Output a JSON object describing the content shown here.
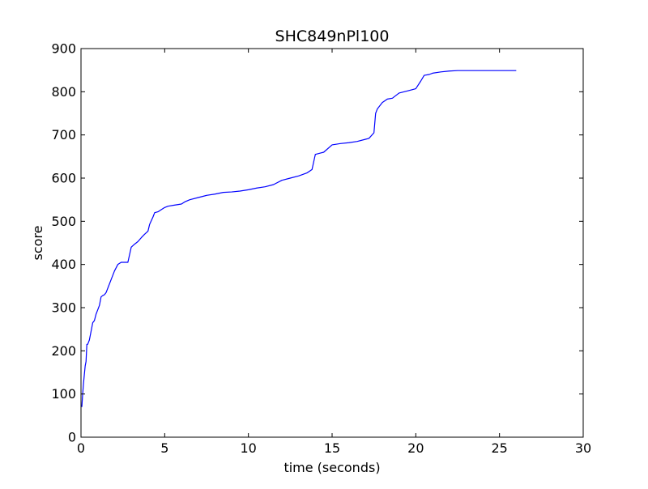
{
  "chart_data": {
    "type": "line",
    "title": "SHC849nPl100",
    "xlabel": "time (seconds)",
    "ylabel": "score",
    "xlim": [
      0,
      30
    ],
    "ylim": [
      0,
      900
    ],
    "xticks": [
      "0",
      "5",
      "10",
      "15",
      "20",
      "25",
      "30"
    ],
    "yticks": [
      "0",
      "100",
      "200",
      "300",
      "400",
      "500",
      "600",
      "700",
      "800",
      "900"
    ],
    "grid": false,
    "legend": "none",
    "line_color": "#0000ff",
    "series": [
      {
        "x": [
          0.05,
          0.1,
          0.15,
          0.2,
          0.25,
          0.3,
          0.35,
          0.4,
          0.5,
          0.6,
          0.7,
          0.8,
          0.9,
          1.0,
          1.1,
          1.2,
          1.3,
          1.4,
          1.5,
          1.6,
          1.8,
          2.0,
          2.2,
          2.4,
          2.6,
          2.8,
          3.0,
          3.2,
          3.4,
          3.6,
          3.8,
          4.0,
          4.1,
          4.3,
          4.4,
          4.6,
          4.8,
          5.0,
          5.2,
          5.5,
          6.0,
          6.2,
          6.5,
          7.0,
          7.5,
          8.0,
          8.5,
          9.0,
          9.5,
          10.0,
          10.5,
          11.0,
          11.5,
          12.0,
          12.5,
          13.0,
          13.5,
          13.8,
          14.0,
          14.3,
          14.5,
          15.0,
          15.5,
          16.0,
          16.5,
          17.0,
          17.2,
          17.5,
          17.6,
          17.7,
          18.0,
          18.3,
          18.6,
          19.0,
          19.5,
          20.0,
          20.3,
          20.5,
          20.8,
          21.0,
          21.5,
          22.0,
          22.5,
          23.0,
          24.0,
          25.0,
          26.0
        ],
        "y": [
          70,
          100,
          125,
          145,
          165,
          175,
          215,
          215,
          225,
          245,
          265,
          270,
          285,
          295,
          305,
          325,
          328,
          330,
          335,
          345,
          365,
          385,
          400,
          405,
          405,
          405,
          440,
          447,
          453,
          462,
          470,
          477,
          493,
          510,
          520,
          522,
          527,
          532,
          535,
          537,
          540,
          545,
          550,
          555,
          560,
          563,
          567,
          568,
          570,
          573,
          577,
          580,
          585,
          595,
          600,
          605,
          612,
          620,
          655,
          658,
          660,
          677,
          680,
          682,
          685,
          690,
          692,
          705,
          750,
          760,
          775,
          783,
          785,
          797,
          802,
          807,
          825,
          838,
          840,
          843,
          846,
          848,
          849,
          849,
          849,
          849,
          849
        ]
      }
    ]
  }
}
